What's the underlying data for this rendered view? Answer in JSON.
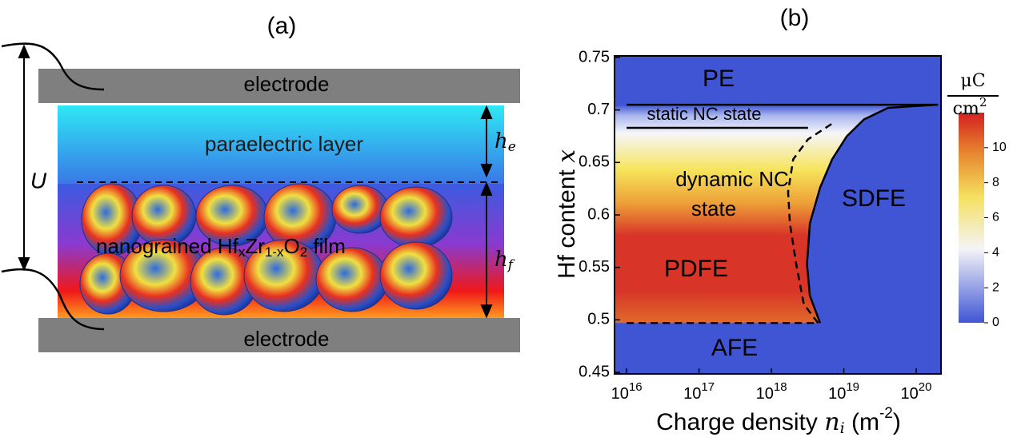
{
  "panel_a": {
    "label": "(a)",
    "top_electrode": "electrode",
    "bottom_electrode": "electrode",
    "layer_label": "paraelectric layer",
    "film_label": [
      "nanograined Hf",
      "x",
      "Zr",
      "1-x",
      "O",
      "2",
      " film"
    ],
    "voltage": "U",
    "h_e": [
      "h",
      "e"
    ],
    "h_f": [
      "h",
      "f"
    ]
  },
  "chart_data": {
    "type": "phase-diagram",
    "panel_label": "(b)",
    "ylabel": [
      "Hf content ",
      "x"
    ],
    "xlabel": [
      "Charge density ",
      "n",
      "i",
      " (m",
      "-2",
      ")"
    ],
    "xscale": "log",
    "xlim": [
      6800000000000000.0,
      2.2e+20
    ],
    "ylim": [
      0.4485,
      0.7515
    ],
    "xticks": [
      {
        "value": 1e+16,
        "label": "10",
        "exponent": "16"
      },
      {
        "value": 1e+17,
        "label": "10",
        "exponent": "17"
      },
      {
        "value": 1e+18,
        "label": "10",
        "exponent": "18"
      },
      {
        "value": 1e+19,
        "label": "10",
        "exponent": "19"
      },
      {
        "value": 1e+20,
        "label": "10",
        "exponent": "20"
      }
    ],
    "yticks": [
      0.45,
      0.5,
      0.55,
      0.6,
      0.65,
      0.7,
      0.75
    ],
    "region_labels": [
      "PE",
      "static NC state",
      "dynamic NC",
      "state",
      "SDFE",
      "PDFE",
      "AFE"
    ],
    "background_color": "#3f55d4",
    "boundaries": [
      {
        "style": "solid",
        "x": [
          1e+16,
          2e+20
        ],
        "y": [
          0.705,
          0.705
        ]
      },
      {
        "style": "solid",
        "x": [
          1e+16,
          3.2e+18
        ],
        "y": [
          0.683,
          0.683
        ]
      },
      {
        "style": "dashed",
        "x": [
          1e+16,
          4.4e+18
        ],
        "y": [
          0.497,
          0.497
        ]
      },
      {
        "style": "dashed",
        "x": [
          4.4e+18,
          2.8e+18,
          2.2e+18,
          1.8e+18,
          1.7e+18,
          2e+18,
          3.2e+18,
          6.9e+18
        ],
        "y": [
          0.497,
          0.515,
          0.553,
          0.592,
          0.622,
          0.653,
          0.672,
          0.687
        ]
      },
      {
        "style": "solid",
        "x": [
          4.7e+18,
          3.4e+18,
          3.1e+18,
          3.4e+18,
          4.7e+18,
          6.9e+18,
          1.1e+19,
          1.9e+19,
          4.1e+19,
          1.9e+20
        ],
        "y": [
          0.497,
          0.523,
          0.553,
          0.592,
          0.626,
          0.653,
          0.675,
          0.691,
          0.702,
          0.705
        ]
      }
    ],
    "colorbar": {
      "lim": [
        0,
        12
      ],
      "ticks": [
        0,
        2,
        4,
        6,
        8,
        10
      ],
      "numerator": "μC",
      "denominator": "cm",
      "exponent": "2"
    }
  }
}
